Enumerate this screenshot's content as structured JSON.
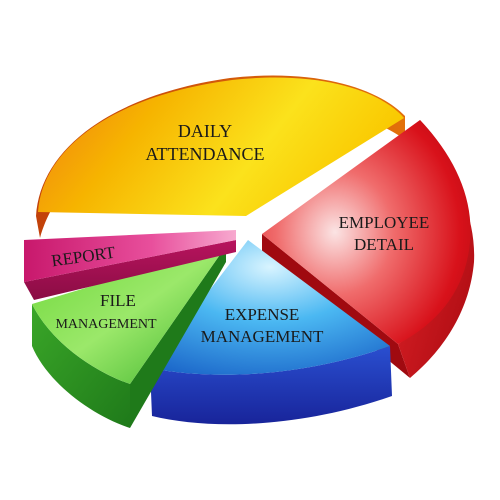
{
  "diagram": {
    "segments": [
      {
        "id": "daily_attendance",
        "lines": [
          "DAILY",
          "ATTENDANCE"
        ],
        "color": "#f5b800"
      },
      {
        "id": "employee_detail",
        "lines": [
          "EMPLOYEE",
          "DETAIL"
        ],
        "color": "#e0222a"
      },
      {
        "id": "expense_management",
        "lines": [
          "EXPENSE",
          "MANAGEMENT"
        ],
        "color": "#1e88d8"
      },
      {
        "id": "file_management",
        "lines": [
          "FILE",
          "MANAGEMENT"
        ],
        "color": "#3cb83a"
      },
      {
        "id": "report",
        "lines": [
          "REPORT"
        ],
        "color": "#d92a7c"
      }
    ]
  }
}
